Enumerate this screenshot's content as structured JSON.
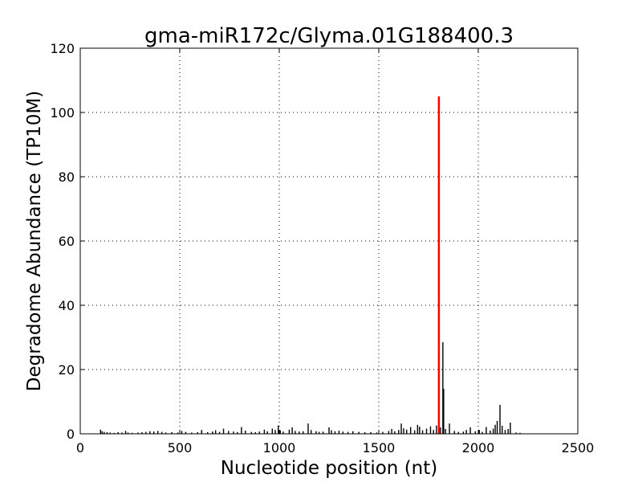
{
  "chart_data": {
    "type": "bar",
    "title": "gma-miR172c/Glyma.01G188400.3",
    "xlabel": "Nucleotide position (nt)",
    "ylabel": "Degradome Abundance (TP10M)",
    "xlim": [
      0,
      2500
    ],
    "ylim": [
      0,
      120
    ],
    "xticks": [
      0,
      500,
      1000,
      1500,
      2000,
      2500
    ],
    "yticks": [
      0,
      20,
      40,
      60,
      80,
      100,
      120
    ],
    "grid": true,
    "colors": {
      "background": "#000000",
      "highlight": "#ff0000"
    },
    "highlight": {
      "x": 1802,
      "y": 105
    },
    "background_series": {
      "x": [
        102,
        110,
        120,
        135,
        150,
        170,
        190,
        210,
        228,
        240,
        260,
        290,
        310,
        330,
        350,
        370,
        390,
        410,
        430,
        460,
        490,
        510,
        530,
        560,
        590,
        610,
        640,
        665,
        680,
        700,
        720,
        745,
        770,
        790,
        810,
        830,
        860,
        880,
        900,
        925,
        940,
        965,
        980,
        995,
        1005,
        1020,
        1050,
        1065,
        1080,
        1100,
        1120,
        1145,
        1160,
        1185,
        1200,
        1220,
        1250,
        1262,
        1280,
        1300,
        1320,
        1345,
        1370,
        1400,
        1430,
        1460,
        1490,
        1520,
        1550,
        1565,
        1580,
        1600,
        1613,
        1625,
        1640,
        1660,
        1680,
        1695,
        1705,
        1720,
        1740,
        1760,
        1775,
        1790,
        1810,
        1822,
        1826,
        1835,
        1855,
        1880,
        1900,
        1925,
        1940,
        1960,
        1985,
        2005,
        2020,
        2040,
        2060,
        2075,
        2085,
        2095,
        2109,
        2120,
        2135,
        2150,
        2161,
        2190,
        2210
      ],
      "y": [
        1.3,
        0.8,
        0.6,
        0.5,
        0.4,
        0.3,
        0.5,
        0.4,
        0.9,
        0.4,
        0.3,
        0.4,
        0.5,
        0.6,
        0.8,
        0.7,
        0.9,
        0.6,
        0.4,
        0.5,
        0.4,
        0.9,
        0.6,
        0.4,
        0.5,
        1.2,
        0.5,
        0.7,
        1.1,
        0.6,
        1.6,
        0.9,
        0.7,
        0.5,
        2.1,
        1.0,
        0.6,
        0.5,
        0.7,
        1.3,
        0.8,
        1.6,
        1.2,
        2.6,
        1.1,
        0.7,
        1.3,
        2.0,
        0.9,
        0.7,
        0.8,
        3.2,
        1.2,
        0.8,
        0.6,
        0.7,
        2.0,
        1.1,
        0.8,
        1.0,
        0.7,
        0.6,
        0.8,
        0.6,
        0.5,
        0.5,
        0.4,
        0.6,
        0.9,
        1.5,
        0.8,
        1.2,
        3.2,
        1.7,
        1.3,
        2.1,
        1.1,
        2.8,
        2.2,
        1.1,
        1.6,
        2.3,
        1.2,
        2.6,
        2.0,
        28.5,
        14.0,
        1.5,
        3.2,
        0.9,
        0.6,
        0.7,
        1.2,
        2.0,
        0.8,
        1.2,
        0.6,
        2.1,
        1.0,
        1.6,
        2.8,
        4.0,
        9.0,
        2.5,
        1.2,
        1.5,
        3.5,
        0.4,
        0.3
      ]
    }
  }
}
